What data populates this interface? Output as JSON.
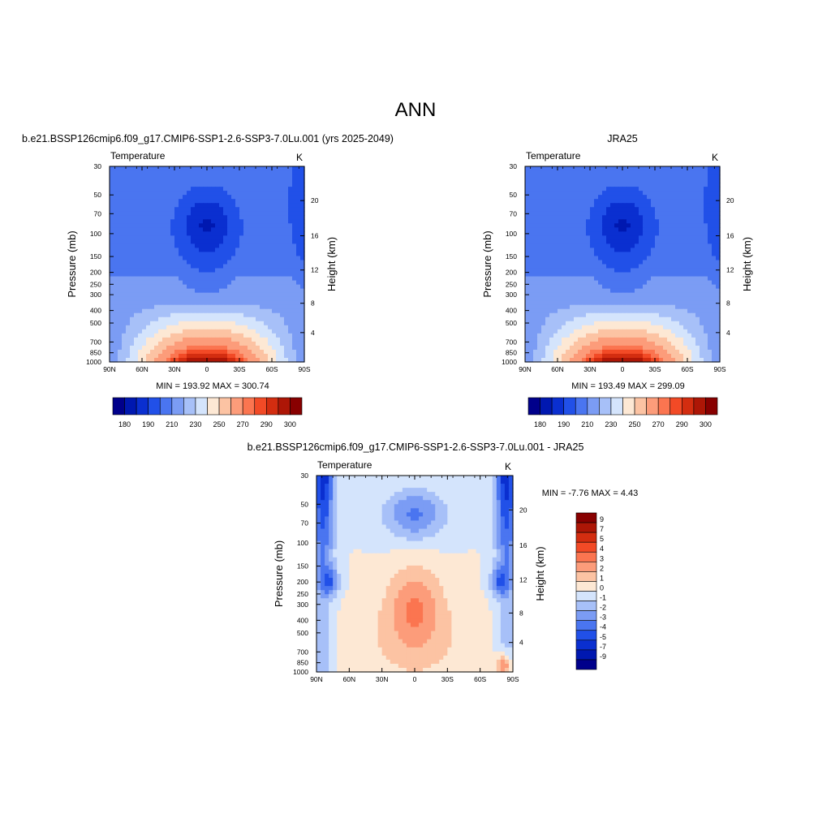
{
  "figure": {
    "title": "ANN",
    "colors": {
      "seq_palette": [
        "#00008b",
        "#0018b0",
        "#0a2fd0",
        "#2150e8",
        "#4a75f0",
        "#7b9cf4",
        "#a7c0f8",
        "#d4e4fc",
        "#fde8d4",
        "#fcc3a3",
        "#fc9c7a",
        "#fb7550",
        "#f24a26",
        "#d32d10",
        "#ad1606",
        "#880000"
      ],
      "diff_palette": [
        "#00008b",
        "#0018b0",
        "#0a2fd0",
        "#2150e8",
        "#4a75f0",
        "#7b9cf4",
        "#a7c0f8",
        "#d4e4fc",
        "#fde8d4",
        "#fcc3a3",
        "#fc9c7a",
        "#fb7550",
        "#f24a26",
        "#d32d10",
        "#ad1606",
        "#880000"
      ]
    }
  },
  "chart_data": [
    {
      "type": "heatmap",
      "title": "b.e21.BSSP126cmip6.f09_g17.CMIP6-SSP1-2.6-SSP3-7.0Lu.001 (yrs 2025-2049)",
      "variable": "Temperature",
      "units": "K",
      "xlabel": "",
      "ylabel": "Pressure (mb)",
      "ylabel_right": "Height (km)",
      "x_ticks": [
        "90N",
        "60N",
        "30N",
        "0",
        "30S",
        "60S",
        "90S"
      ],
      "y_ticks": [
        "30",
        "50",
        "70",
        "100",
        "150",
        "200",
        "250",
        "300",
        "400",
        "500",
        "700",
        "850",
        "1000"
      ],
      "y2_ticks": [
        "4",
        "8",
        "12",
        "16",
        "20"
      ],
      "y_log": true,
      "ylim": [
        1000,
        30
      ],
      "xlim": [
        90,
        -90
      ],
      "stats": "MIN = 193.92  MAX = 300.74",
      "colorbar": {
        "orientation": "horizontal",
        "labels": [
          "180",
          "190",
          "210",
          "230",
          "250",
          "270",
          "290",
          "300"
        ]
      },
      "min": 193.92,
      "max": 300.74
    },
    {
      "type": "heatmap",
      "title": "JRA25",
      "variable": "Temperature",
      "units": "K",
      "xlabel": "",
      "ylabel": "Pressure (mb)",
      "ylabel_right": "Height (km)",
      "x_ticks": [
        "90N",
        "60N",
        "30N",
        "0",
        "30S",
        "60S",
        "90S"
      ],
      "y_ticks": [
        "30",
        "50",
        "70",
        "100",
        "150",
        "200",
        "250",
        "300",
        "400",
        "500",
        "700",
        "850",
        "1000"
      ],
      "y2_ticks": [
        "4",
        "8",
        "12",
        "16",
        "20"
      ],
      "y_log": true,
      "ylim": [
        1000,
        30
      ],
      "xlim": [
        90,
        -90
      ],
      "stats": "MIN = 193.49  MAX = 299.09",
      "colorbar": {
        "orientation": "horizontal",
        "labels": [
          "180",
          "190",
          "210",
          "230",
          "250",
          "270",
          "290",
          "300"
        ]
      },
      "min": 193.49,
      "max": 299.09
    },
    {
      "type": "heatmap",
      "title": "b.e21.BSSP126cmip6.f09_g17.CMIP6-SSP1-2.6-SSP3-7.0Lu.001 - JRA25",
      "variable": "Temperature",
      "units": "K",
      "xlabel": "",
      "ylabel": "Pressure (mb)",
      "ylabel_right": "Height (km)",
      "x_ticks": [
        "90N",
        "60N",
        "30N",
        "0",
        "30S",
        "60S",
        "90S"
      ],
      "y_ticks": [
        "30",
        "50",
        "70",
        "100",
        "150",
        "200",
        "250",
        "300",
        "400",
        "500",
        "700",
        "850",
        "1000"
      ],
      "y2_ticks": [
        "4",
        "8",
        "12",
        "16",
        "20"
      ],
      "y_log": true,
      "ylim": [
        1000,
        30
      ],
      "xlim": [
        90,
        -90
      ],
      "stats": "MIN =  -7.76  MAX =   4.43",
      "colorbar": {
        "orientation": "vertical",
        "labels": [
          "9",
          "7",
          "5",
          "4",
          "3",
          "2",
          "1",
          "0",
          "-1",
          "-2",
          "-3",
          "-4",
          "-5",
          "-7",
          "-9"
        ]
      },
      "min": -7.76,
      "max": 4.43
    }
  ]
}
